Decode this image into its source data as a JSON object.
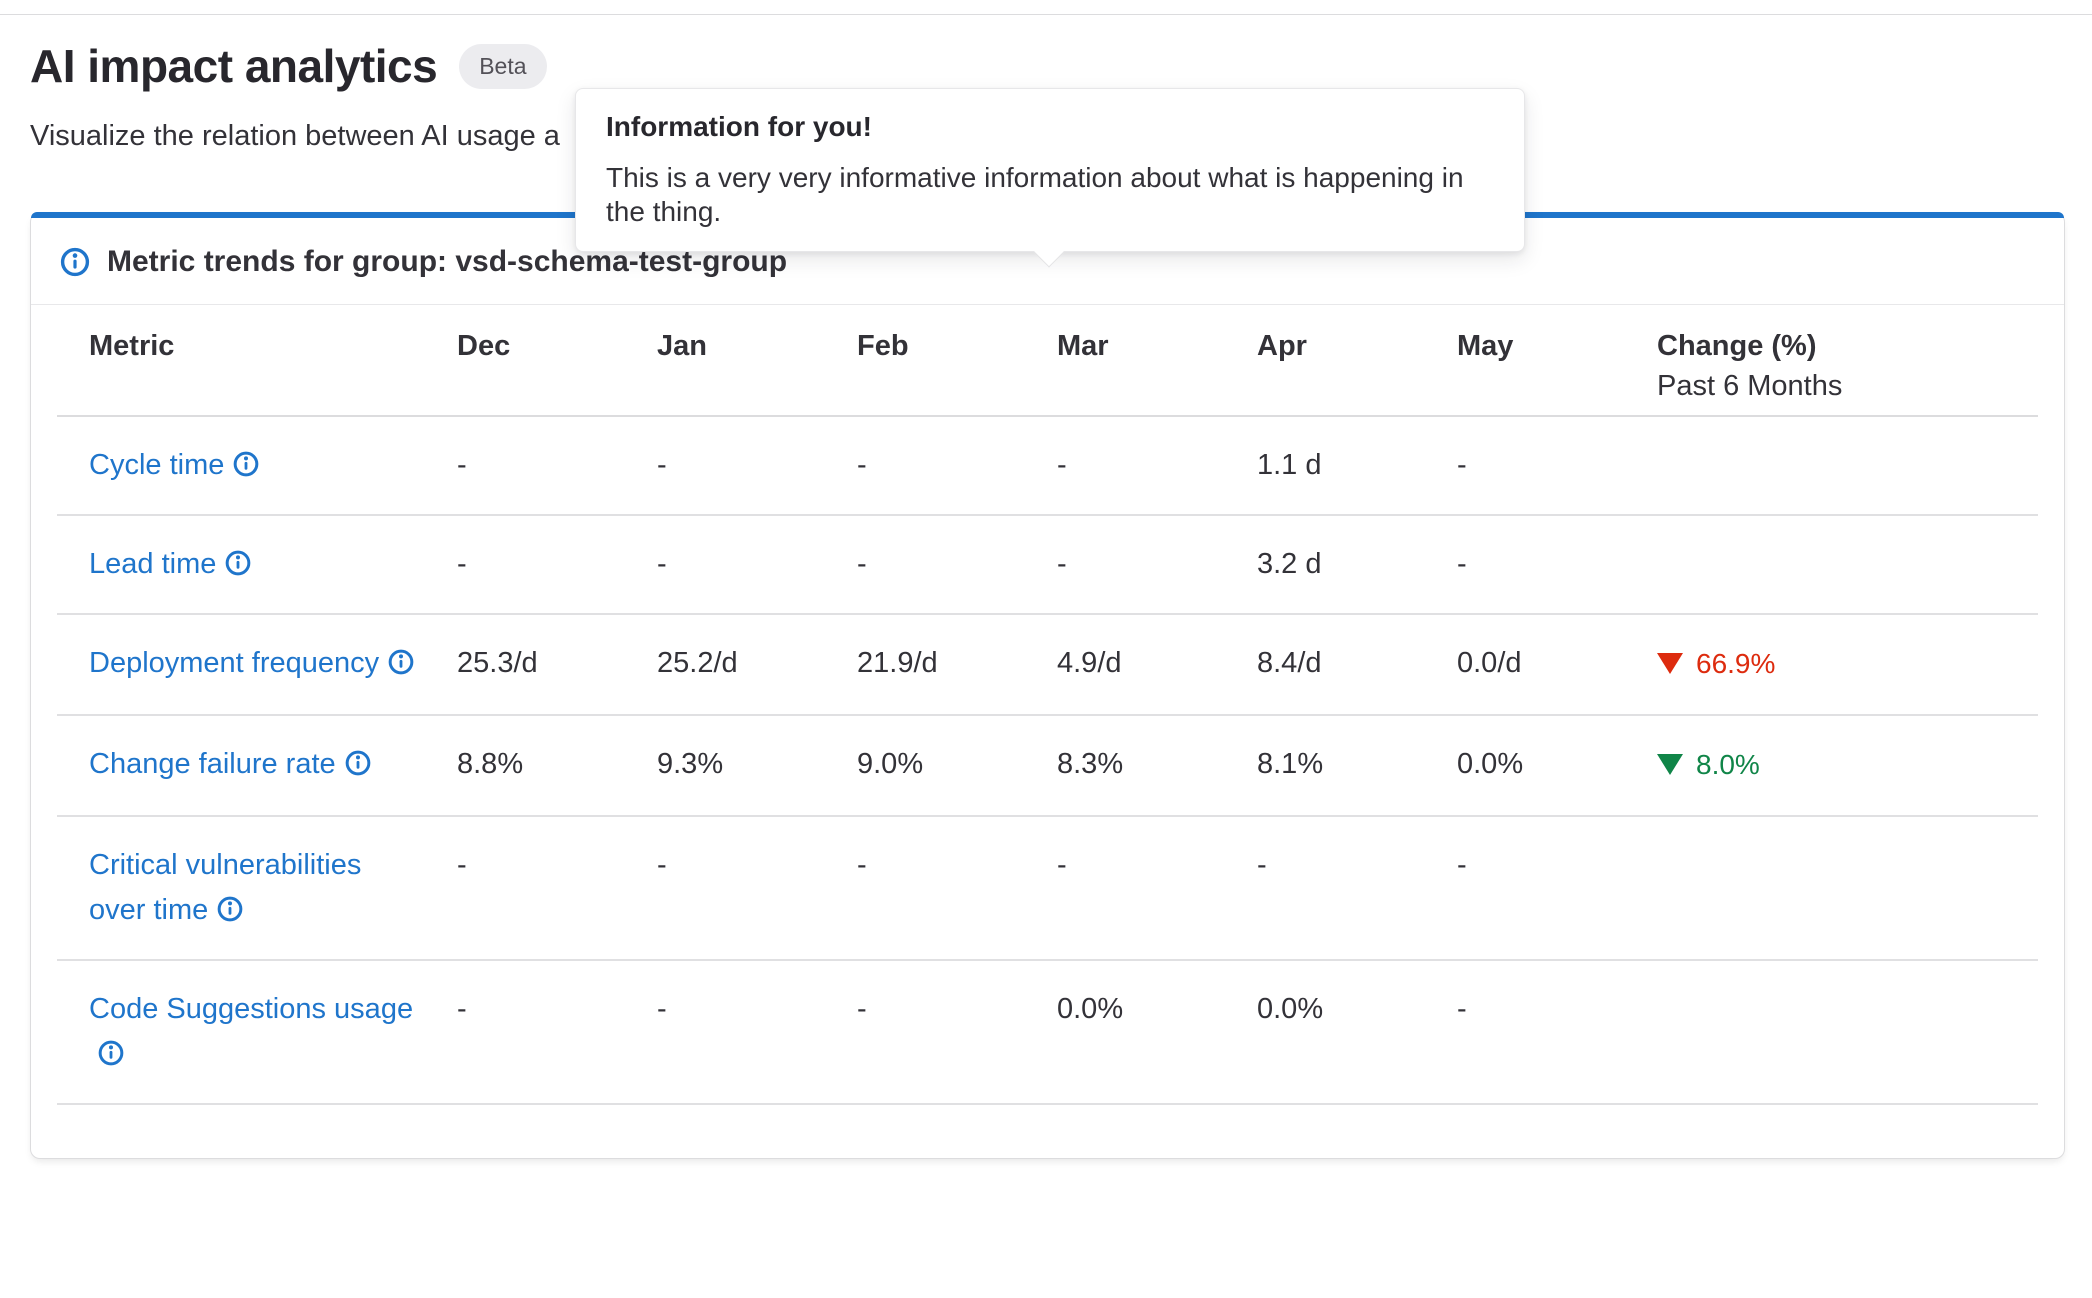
{
  "page": {
    "title": "AI impact analytics",
    "badge": "Beta",
    "subtitle_visible": "Visualize the relation between AI usage a"
  },
  "tooltip": {
    "title": "Information for you!",
    "body": "This is a very very informative information about what is happening in the thing."
  },
  "card": {
    "title": "Metric trends for group: vsd-schema-test-group",
    "accent_color": "#1f75cb"
  },
  "table": {
    "columns": [
      "Metric",
      "Dec",
      "Jan",
      "Feb",
      "Mar",
      "Apr",
      "May"
    ],
    "change_column": {
      "label": "Change (%)",
      "sublabel": "Past 6 Months"
    },
    "rows": [
      {
        "metric": "Cycle time",
        "values": [
          "-",
          "-",
          "-",
          "-",
          "1.1 d",
          "-"
        ],
        "change": null
      },
      {
        "metric": "Lead time",
        "values": [
          "-",
          "-",
          "-",
          "-",
          "3.2 d",
          "-"
        ],
        "change": null
      },
      {
        "metric": "Deployment frequency",
        "values": [
          "25.3/d",
          "25.2/d",
          "21.9/d",
          "4.9/d",
          "8.4/d",
          "0.0/d"
        ],
        "change": {
          "value": "66.9%",
          "direction": "down",
          "color": "#dd2b0e"
        }
      },
      {
        "metric": "Change failure rate",
        "values": [
          "8.8%",
          "9.3%",
          "9.0%",
          "8.3%",
          "8.1%",
          "0.0%"
        ],
        "change": {
          "value": "8.0%",
          "direction": "down",
          "color": "#108548"
        }
      },
      {
        "metric": "Critical vulnerabilities over time",
        "values": [
          "-",
          "-",
          "-",
          "-",
          "-",
          "-"
        ],
        "change": null
      },
      {
        "metric": "Code Suggestions usage",
        "values": [
          "-",
          "-",
          "-",
          "0.0%",
          "0.0%",
          "-"
        ],
        "change": null
      }
    ]
  },
  "colors": {
    "link_blue": "#1f75cb",
    "danger_red": "#dd2b0e",
    "success_green": "#108548"
  }
}
